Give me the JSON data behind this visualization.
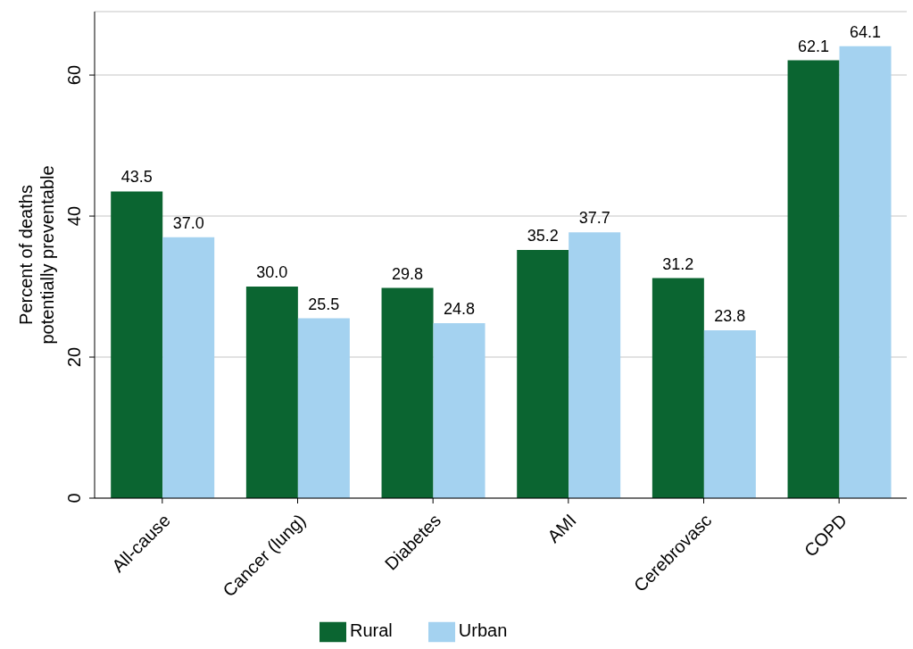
{
  "chart_data": {
    "type": "bar",
    "ylabel": "Percent of deaths\npotentially preventable",
    "categories": [
      "All-cause",
      "Cancer (lung)",
      "Diabetes",
      "AMI",
      "Cerebrovasc",
      "COPD"
    ],
    "series": [
      {
        "name": "Rural",
        "color": "#0b6531",
        "values": [
          43.5,
          30.0,
          29.8,
          35.2,
          31.2,
          62.1
        ],
        "value_labels": [
          "43.5",
          "30.0",
          "29.8",
          "35.2",
          "31.2",
          "62.1"
        ]
      },
      {
        "name": "Urban",
        "color": "#a4d2f0",
        "values": [
          37.0,
          25.5,
          24.8,
          37.7,
          23.8,
          64.1
        ],
        "value_labels": [
          "37.0",
          "25.5",
          "24.8",
          "37.7",
          "23.8",
          "64.1"
        ]
      }
    ],
    "ylim": [
      0,
      69
    ],
    "yticks": [
      0,
      20,
      40,
      60
    ],
    "grid": "y",
    "legend": "bottom"
  }
}
